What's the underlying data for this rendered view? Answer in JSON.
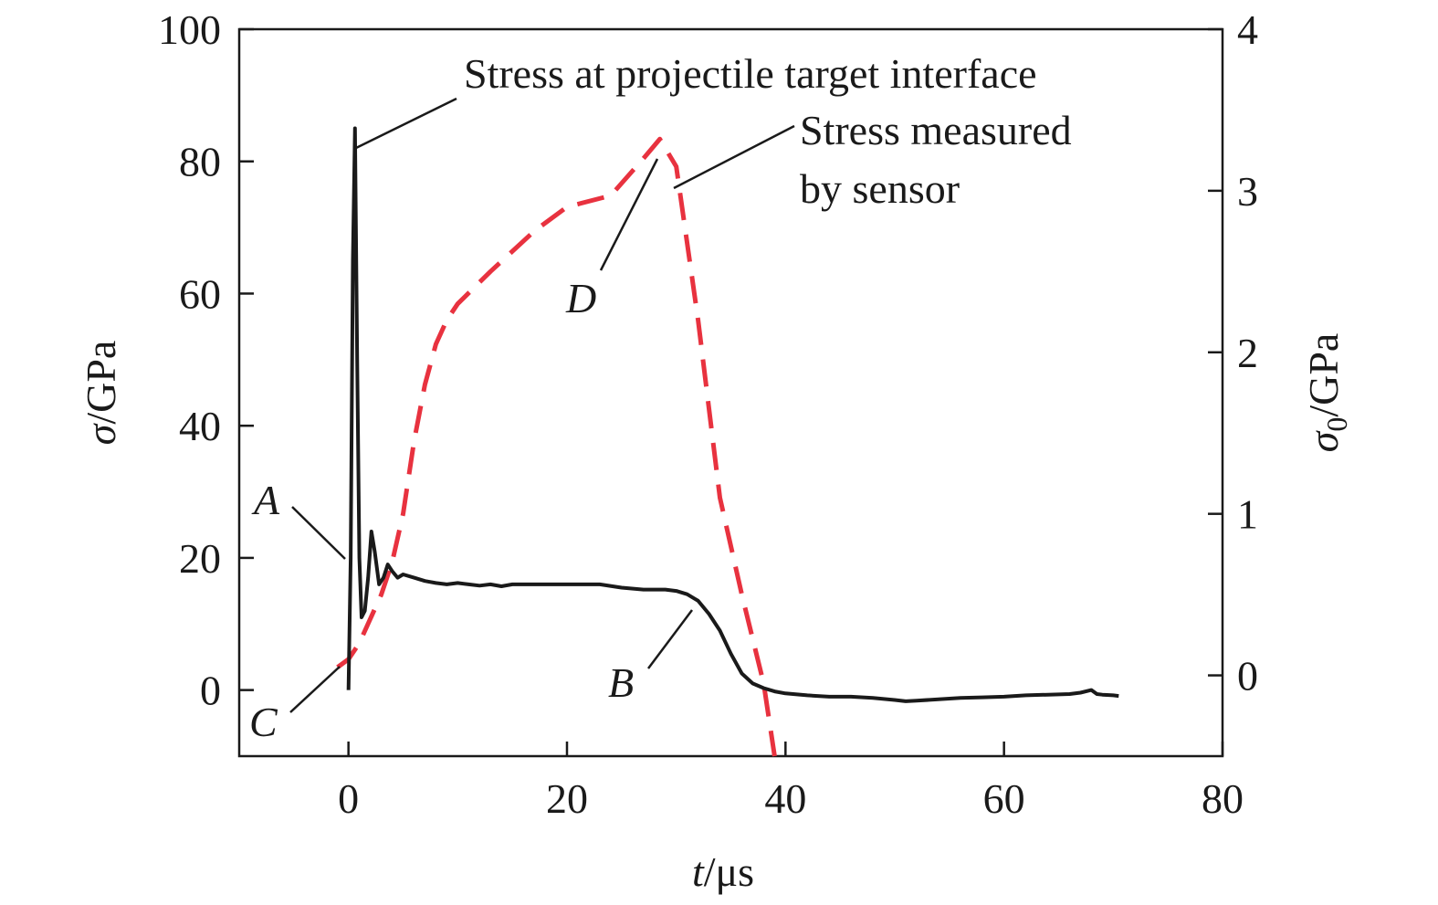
{
  "chart_data": {
    "type": "line",
    "title": "",
    "xlabel": {
      "var": "t",
      "unit": "/μs"
    },
    "ylabel": {
      "var": "σ",
      "unit": "/GPa"
    },
    "y2label": {
      "var": "σ",
      "sub": "0",
      "unit": "/GPa"
    },
    "xlim": [
      -10,
      80
    ],
    "ylim": [
      -10,
      100
    ],
    "y2lim": [
      -0.5,
      4
    ],
    "xticks": [
      0,
      20,
      40,
      60,
      80
    ],
    "yticks": [
      0,
      20,
      40,
      60,
      80,
      100
    ],
    "y2ticks": [
      0,
      1,
      2,
      3,
      4
    ],
    "grid": false,
    "series": [
      {
        "name": "Stress at projectile target interface",
        "axis": "left",
        "color": "#1a1a1a",
        "style": "solid",
        "x": [
          0,
          0.2,
          0.4,
          0.6,
          0.8,
          1.0,
          1.2,
          1.5,
          1.8,
          2.1,
          2.4,
          2.8,
          3.2,
          3.6,
          4.0,
          4.5,
          5.0,
          6,
          7,
          8,
          9,
          10,
          11,
          12,
          13,
          14,
          15,
          17,
          20,
          23,
          25,
          27,
          29,
          30,
          31,
          32,
          33,
          34,
          35,
          36,
          37,
          38,
          39,
          40,
          42,
          44,
          46,
          48,
          50,
          51,
          52,
          54,
          56,
          58,
          60,
          62,
          64,
          66,
          67,
          68,
          68.5,
          69,
          70,
          70.5
        ],
        "y": [
          0,
          20,
          65,
          85,
          50,
          20,
          11,
          12,
          17,
          24,
          21,
          16,
          17,
          19,
          18,
          17,
          17.5,
          17,
          16.5,
          16.2,
          16,
          16.2,
          16,
          15.8,
          16,
          15.7,
          16,
          16,
          16,
          16,
          15.5,
          15.2,
          15.2,
          15,
          14.5,
          13.5,
          11.5,
          9,
          5.5,
          2.5,
          1,
          0.3,
          -0.2,
          -0.5,
          -0.8,
          -1,
          -1,
          -1.2,
          -1.5,
          -1.7,
          -1.6,
          -1.4,
          -1.2,
          -1.1,
          -1,
          -0.8,
          -0.7,
          -0.6,
          -0.4,
          0,
          -0.6,
          -0.7,
          -0.8,
          -0.9
        ]
      },
      {
        "name": "Stress measured by sensor",
        "axis": "right",
        "color": "#e8323f",
        "style": "dashed",
        "x": [
          -1,
          0,
          1,
          2,
          3,
          4,
          5,
          6,
          7,
          8,
          9,
          10,
          13,
          17,
          20,
          24,
          27,
          28.5,
          30,
          32,
          34,
          36,
          38,
          39
        ],
        "y": [
          0.05,
          0.1,
          0.2,
          0.35,
          0.5,
          0.7,
          1.0,
          1.45,
          1.8,
          2.05,
          2.2,
          2.3,
          2.5,
          2.75,
          2.9,
          2.97,
          3.2,
          3.32,
          3.15,
          2.2,
          1.1,
          0.5,
          -0.05,
          -0.5
        ]
      }
    ],
    "annotations": {
      "series1_label": "Stress at projectile target interface",
      "series2_label_line1": "Stress measured",
      "series2_label_line2": "by sensor",
      "points": [
        {
          "label": "A",
          "x": 0,
          "y": 20,
          "axis": "left"
        },
        {
          "label": "B",
          "x": 31,
          "y": 13.5,
          "axis": "left"
        },
        {
          "label": "C",
          "x": -0.5,
          "y": 0.08,
          "axis": "right"
        },
        {
          "label": "D",
          "x": 28.5,
          "y": 3.32,
          "axis": "right"
        }
      ]
    }
  }
}
